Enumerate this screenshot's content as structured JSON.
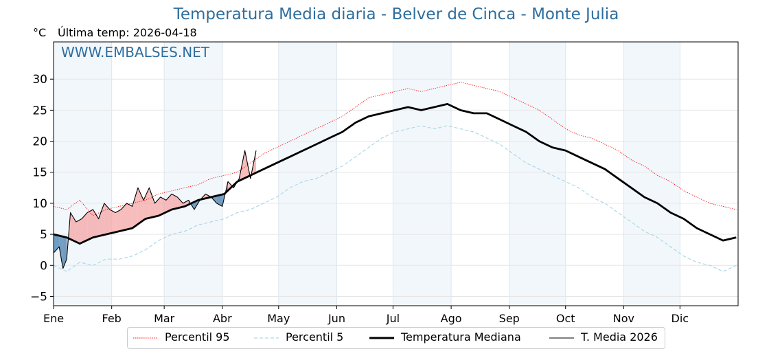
{
  "chart_data": {
    "type": "line",
    "title": "Temperatura Media diaria - Belver de Cinca - Monte Julia",
    "ylabel": "°C",
    "last_temp_label": "Última temp: 2026-04-18",
    "watermark": "WWW.EMBALSES.NET",
    "ylim": [
      -6.5,
      36
    ],
    "y_ticks": [
      "−5",
      "0",
      "5",
      "10",
      "15",
      "20",
      "25",
      "30"
    ],
    "y_tick_values": [
      -5,
      0,
      5,
      10,
      15,
      20,
      25,
      30
    ],
    "x_ticks": [
      "Ene",
      "Feb",
      "Mar",
      "Abr",
      "May",
      "Jun",
      "Jul",
      "Ago",
      "Sep",
      "Oct",
      "Nov",
      "Dic"
    ],
    "x_tick_days": [
      0,
      31,
      59,
      90,
      120,
      151,
      181,
      212,
      243,
      273,
      304,
      334
    ],
    "xlim_days": [
      0,
      365
    ],
    "grid": true,
    "legend_position": "bottom",
    "series": [
      {
        "name": "Percentil 95",
        "color": "#ff0000",
        "style": "dotted",
        "x": [
          0,
          7,
          14,
          21,
          28,
          35,
          42,
          49,
          56,
          63,
          70,
          77,
          84,
          91,
          98,
          105,
          112,
          119,
          126,
          133,
          140,
          147,
          154,
          161,
          168,
          175,
          182,
          189,
          196,
          203,
          210,
          217,
          224,
          231,
          238,
          245,
          252,
          259,
          266,
          273,
          280,
          287,
          294,
          301,
          308,
          315,
          322,
          329,
          336,
          343,
          350,
          357,
          364
        ],
        "values": [
          9.5,
          9.0,
          10.5,
          8.0,
          9.0,
          9.5,
          10.0,
          10.5,
          11.5,
          12.0,
          12.5,
          13.0,
          14.0,
          14.5,
          15.0,
          16.5,
          18.0,
          19.0,
          20.0,
          21.0,
          22.0,
          23.0,
          24.0,
          25.5,
          27.0,
          27.5,
          28.0,
          28.5,
          28.0,
          28.5,
          29.0,
          29.5,
          29.0,
          28.5,
          28.0,
          27.0,
          26.0,
          25.0,
          23.5,
          22.0,
          21.0,
          20.5,
          19.5,
          18.5,
          17.0,
          16.0,
          14.5,
          13.5,
          12.0,
          11.0,
          10.0,
          9.5,
          9.0
        ]
      },
      {
        "name": "Percentil 5",
        "color": "#add8e6",
        "style": "dashed",
        "x": [
          0,
          7,
          14,
          21,
          28,
          35,
          42,
          49,
          56,
          63,
          70,
          77,
          84,
          91,
          98,
          105,
          112,
          119,
          126,
          133,
          140,
          147,
          154,
          161,
          168,
          175,
          182,
          189,
          196,
          203,
          210,
          217,
          224,
          231,
          238,
          245,
          252,
          259,
          266,
          273,
          280,
          287,
          294,
          301,
          308,
          315,
          322,
          329,
          336,
          343,
          350,
          357,
          364
        ],
        "values": [
          0.0,
          -1.0,
          0.5,
          0.0,
          1.0,
          1.0,
          1.5,
          2.5,
          4.0,
          5.0,
          5.5,
          6.5,
          7.0,
          7.5,
          8.5,
          9.0,
          10.0,
          11.0,
          12.5,
          13.5,
          14.0,
          15.0,
          16.0,
          17.5,
          19.0,
          20.5,
          21.5,
          22.0,
          22.5,
          22.0,
          22.5,
          22.0,
          21.5,
          20.5,
          19.5,
          18.0,
          16.5,
          15.5,
          14.5,
          13.5,
          12.5,
          11.0,
          10.0,
          8.5,
          7.0,
          5.5,
          4.5,
          3.0,
          1.5,
          0.5,
          0.0,
          -1.0,
          0.0
        ]
      },
      {
        "name": "Temperatura Mediana",
        "color": "#000000",
        "style": "solid-thick",
        "x": [
          0,
          7,
          14,
          21,
          28,
          35,
          42,
          49,
          56,
          63,
          70,
          77,
          84,
          91,
          98,
          105,
          112,
          119,
          126,
          133,
          140,
          147,
          154,
          161,
          168,
          175,
          182,
          189,
          196,
          203,
          210,
          217,
          224,
          231,
          238,
          245,
          252,
          259,
          266,
          273,
          280,
          287,
          294,
          301,
          308,
          315,
          322,
          329,
          336,
          343,
          350,
          357,
          364
        ],
        "values": [
          5.0,
          4.5,
          3.5,
          4.5,
          5.0,
          5.5,
          6.0,
          7.5,
          8.0,
          9.0,
          9.5,
          10.5,
          11.0,
          11.5,
          13.5,
          14.5,
          15.5,
          16.5,
          17.5,
          18.5,
          19.5,
          20.5,
          21.5,
          23.0,
          24.0,
          24.5,
          25.0,
          25.5,
          25.0,
          25.5,
          26.0,
          25.0,
          24.5,
          24.5,
          23.5,
          22.5,
          21.5,
          20.0,
          19.0,
          18.5,
          17.5,
          16.5,
          15.5,
          14.0,
          12.5,
          11.0,
          10.0,
          8.5,
          7.5,
          6.0,
          5.0,
          4.0,
          4.5
        ]
      },
      {
        "name": "T. Media 2026",
        "color": "#000000",
        "style": "solid-thin",
        "x": [
          0,
          3,
          5,
          7,
          9,
          12,
          15,
          18,
          21,
          24,
          27,
          30,
          33,
          36,
          39,
          42,
          45,
          48,
          51,
          54,
          57,
          60,
          63,
          66,
          69,
          72,
          75,
          78,
          81,
          84,
          87,
          90,
          93,
          96,
          99,
          102,
          105,
          108
        ],
        "values": [
          2.0,
          3.0,
          -0.5,
          1.0,
          8.5,
          7.0,
          7.5,
          8.5,
          9.0,
          7.5,
          10.0,
          9.0,
          8.5,
          9.0,
          10.0,
          9.5,
          12.5,
          10.5,
          12.5,
          10.0,
          11.0,
          10.5,
          11.5,
          11.0,
          10.0,
          10.5,
          9.0,
          10.5,
          11.5,
          11.0,
          10.0,
          9.5,
          13.5,
          12.5,
          14.0,
          18.5,
          14.0,
          18.5
        ]
      }
    ]
  },
  "legend": {
    "items": [
      "Percentil 95",
      "Percentil 5",
      "Temperatura Mediana",
      "T. Media 2026"
    ]
  }
}
